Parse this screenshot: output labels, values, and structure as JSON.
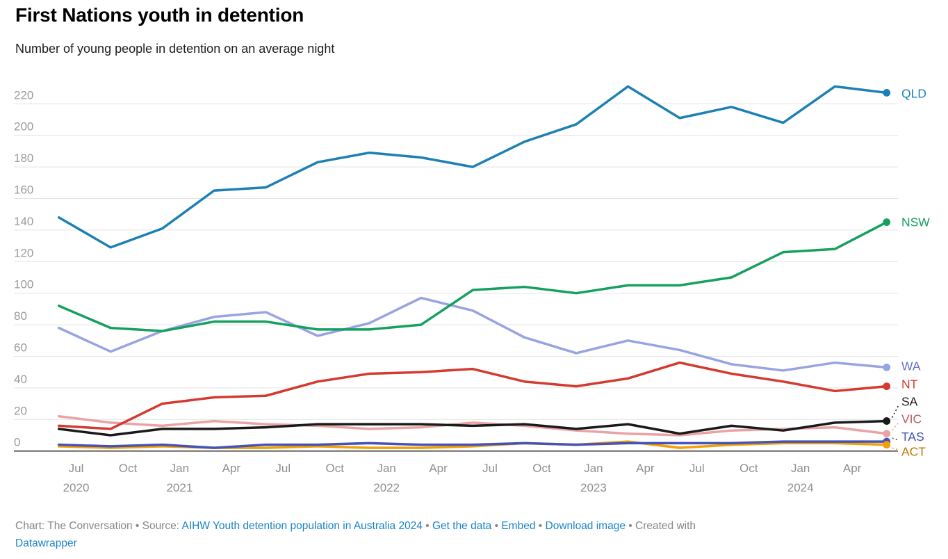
{
  "header": {
    "title": "First Nations youth in detention",
    "subtitle": "Number of young people in detention on an average night"
  },
  "chart_data": {
    "type": "line",
    "title": "First Nations youth in detention",
    "subtitle": "Number of young people in detention on an average night",
    "x_categories": [
      "Jun 2020",
      "Sep 2020",
      "Dec 2020",
      "Mar 2021",
      "Jun 2021",
      "Sep 2021",
      "Dec 2021",
      "Mar 2022",
      "Jun 2022",
      "Sep 2022",
      "Dec 2022",
      "Mar 2023",
      "Jun 2023",
      "Sep 2023",
      "Dec 2023",
      "Mar 2024",
      "Jun 2024"
    ],
    "xticks": [
      {
        "month": "Jul",
        "year": "2020"
      },
      {
        "month": "Oct",
        "year": ""
      },
      {
        "month": "Jan",
        "year": "2021"
      },
      {
        "month": "Apr",
        "year": ""
      },
      {
        "month": "Jul",
        "year": ""
      },
      {
        "month": "Oct",
        "year": ""
      },
      {
        "month": "Jan",
        "year": "2022"
      },
      {
        "month": "Apr",
        "year": ""
      },
      {
        "month": "Jul",
        "year": ""
      },
      {
        "month": "Oct",
        "year": ""
      },
      {
        "month": "Jan",
        "year": "2023"
      },
      {
        "month": "Apr",
        "year": ""
      },
      {
        "month": "Jul",
        "year": ""
      },
      {
        "month": "Oct",
        "year": ""
      },
      {
        "month": "Jan",
        "year": "2024"
      },
      {
        "month": "Apr",
        "year": ""
      }
    ],
    "yticks": [
      0,
      20,
      40,
      60,
      80,
      100,
      120,
      140,
      160,
      180,
      200,
      220
    ],
    "ylim": [
      0,
      233
    ],
    "grid": "horizontal",
    "legend_position": "right-edge-labels",
    "series": [
      {
        "name": "QLD",
        "color": "#1d80b4",
        "label_color": "#1d80b4",
        "values": [
          148,
          129,
          141,
          165,
          167,
          183,
          189,
          186,
          180,
          196,
          207,
          231,
          211,
          218,
          208,
          231,
          227
        ]
      },
      {
        "name": "NSW",
        "color": "#16a060",
        "label_color": "#16a060",
        "values": [
          92,
          78,
          76,
          82,
          82,
          77,
          77,
          80,
          102,
          104,
          100,
          105,
          105,
          110,
          126,
          128,
          145
        ]
      },
      {
        "name": "WA",
        "color": "#98a4e2",
        "label_color": "#6470c8",
        "values": [
          78,
          63,
          76,
          85,
          88,
          73,
          81,
          97,
          89,
          72,
          62,
          70,
          64,
          55,
          51,
          56,
          53
        ]
      },
      {
        "name": "NT",
        "color": "#d43a2f",
        "label_color": "#d43a2f",
        "values": [
          16,
          14,
          30,
          34,
          35,
          44,
          49,
          50,
          52,
          44,
          41,
          46,
          56,
          49,
          44,
          38,
          41
        ]
      },
      {
        "name": "SA",
        "color": "#1a1a1a",
        "label_color": "#1a1a1a",
        "values": [
          14,
          10,
          14,
          14,
          15,
          17,
          17,
          17,
          16,
          17,
          14,
          17,
          11,
          16,
          13,
          18,
          19
        ]
      },
      {
        "name": "VIC",
        "color": "#e9a3a5",
        "label_color": "#b25b5e",
        "values": [
          22,
          18,
          16,
          19,
          17,
          16,
          14,
          15,
          18,
          16,
          13,
          11,
          10,
          13,
          14,
          15,
          11
        ]
      },
      {
        "name": "TAS",
        "color": "#4553b8",
        "label_color": "#4553b8",
        "values": [
          4,
          3,
          4,
          2,
          4,
          4,
          5,
          4,
          4,
          5,
          4,
          5,
          5,
          5,
          6,
          6,
          6
        ]
      },
      {
        "name": "ACT",
        "color": "#f3a002",
        "label_color": "#ba7a00",
        "values": [
          3,
          2,
          3,
          2,
          2,
          3,
          2,
          2,
          3,
          5,
          4,
          6,
          2,
          4,
          5,
          5,
          4
        ]
      }
    ]
  },
  "footer": {
    "lines": [
      [
        {
          "text": "Chart: The Conversation • Source: ",
          "link": false
        },
        {
          "text": "AIHW Youth detention population in Australia 2024",
          "link": true,
          "id": "source"
        },
        {
          "text": " • ",
          "link": false
        },
        {
          "text": "Get the data",
          "link": true,
          "id": "get-the-data"
        },
        {
          "text": " • ",
          "link": false
        },
        {
          "text": "Embed",
          "link": true,
          "id": "embed"
        },
        {
          "text": "  • ",
          "link": false
        },
        {
          "text": "Download image",
          "link": true,
          "id": "download-image"
        },
        {
          "text": " • Created with",
          "link": false
        }
      ],
      [
        {
          "text": "Datawrapper",
          "link": true,
          "id": "datawrapper"
        }
      ]
    ]
  }
}
